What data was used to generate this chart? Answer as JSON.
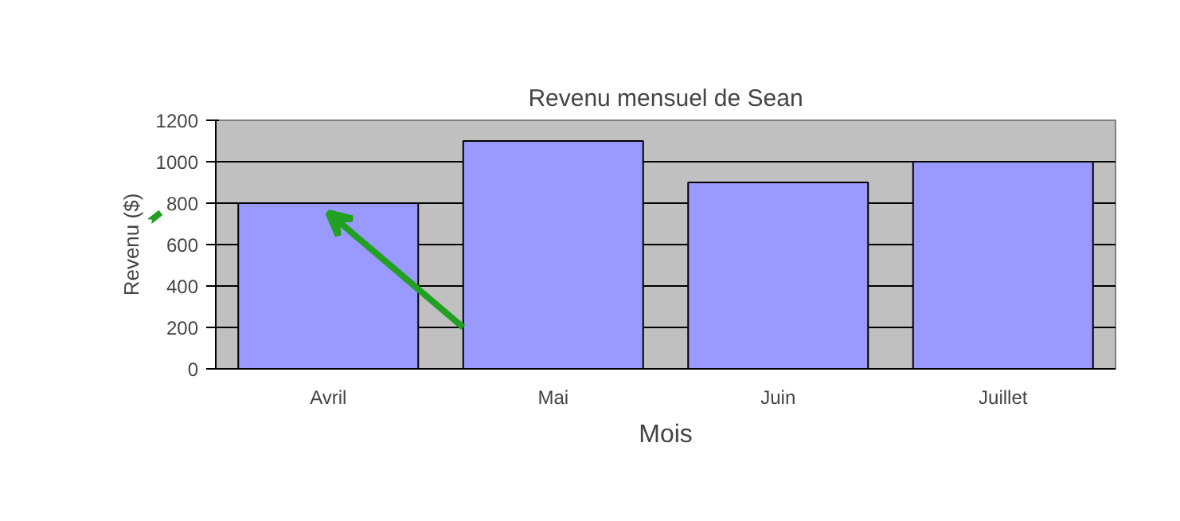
{
  "chart_data": {
    "type": "bar",
    "title": "Revenu mensuel de Sean",
    "xlabel": "Mois",
    "ylabel": "Revenu ($)",
    "categories": [
      "Avril",
      "Mai",
      "Juin",
      "Juillet"
    ],
    "series": [
      {
        "color": "#9999ff",
        "values": [
          800,
          1100,
          900,
          1000
        ]
      }
    ],
    "ylim": [
      0,
      1200
    ],
    "yticks": [
      0,
      200,
      400,
      600,
      800,
      1000,
      1200
    ],
    "grid": "y"
  }
}
